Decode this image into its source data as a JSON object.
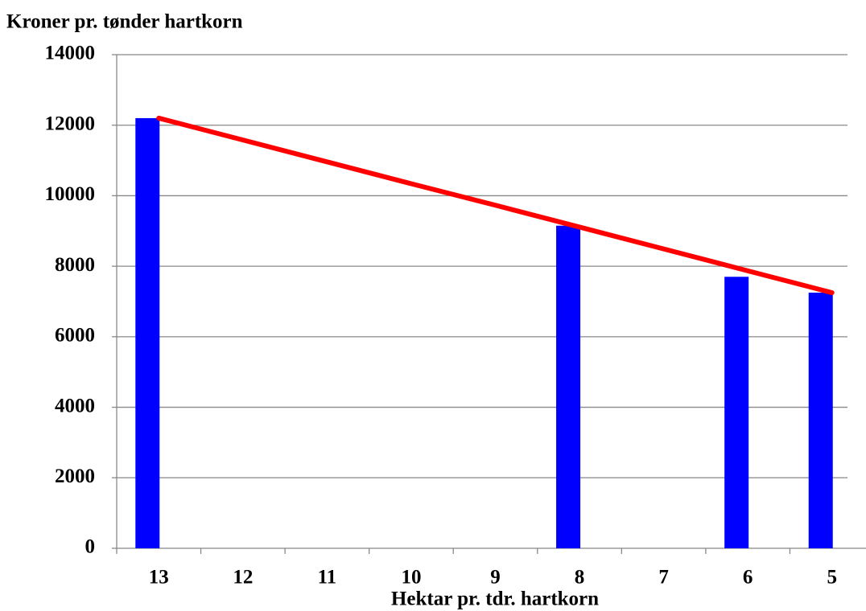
{
  "chart_data": {
    "type": "bar",
    "title": "Kroner pr. tønder hartkorn",
    "x_label": "Hektar pr. tdr. hartkorn",
    "categories": [
      "13",
      "12",
      "11",
      "10",
      "9",
      "8",
      "7",
      "6",
      "5"
    ],
    "series": [
      {
        "type": "bar",
        "color": "#0000ff",
        "values": [
          12200,
          null,
          null,
          null,
          null,
          9150,
          null,
          7700,
          7250
        ]
      },
      {
        "type": "line",
        "color": "#ff0000",
        "values": [
          12200,
          11580,
          10960,
          10340,
          9730,
          9110,
          8490,
          7870,
          7250
        ]
      }
    ],
    "ylim": [
      0,
      14000
    ],
    "yticks": [
      0,
      2000,
      4000,
      6000,
      8000,
      10000,
      12000,
      14000
    ],
    "grid": true
  }
}
